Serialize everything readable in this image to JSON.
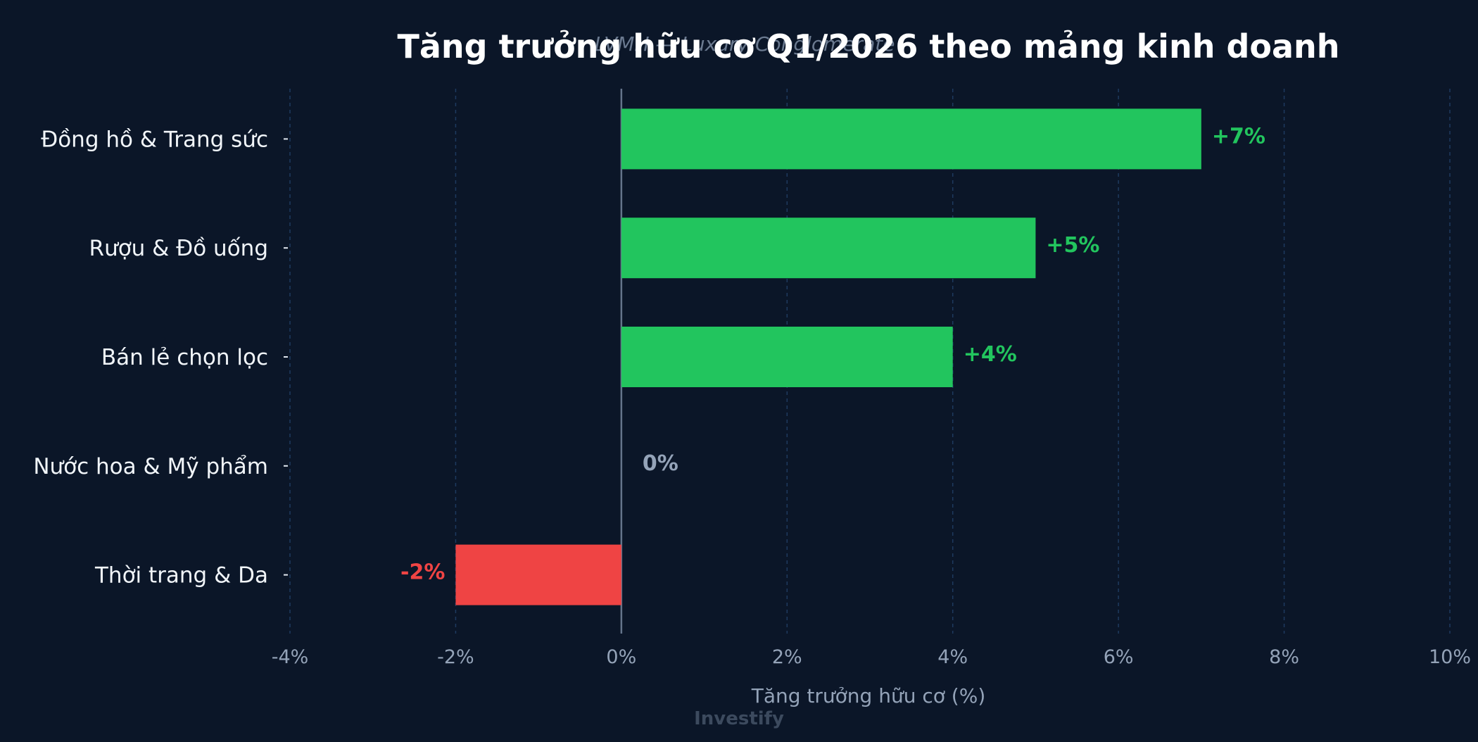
{
  "chart_data": {
    "type": "bar",
    "orientation": "horizontal",
    "title": "Tăng trưởng hữu cơ Q1/2026 theo mảng kinh doanh",
    "subtitle": "LVMH — Luxury Conglomerate",
    "xlabel": "Tăng trưởng hữu cơ (%)",
    "ylabel": "",
    "categories": [
      "Đồng hồ & Trang sức",
      "Rượu & Đồ uống",
      "Bán lẻ chọn lọc",
      "Nước hoa & Mỹ phẩm",
      "Thời trang & Da"
    ],
    "values": [
      7,
      5,
      4,
      0,
      -2
    ],
    "value_labels": [
      "+7%",
      "+5%",
      "+4%",
      "0%",
      "-2%"
    ],
    "xlim": [
      -4,
      10
    ],
    "xticks": [
      -4,
      -2,
      0,
      2,
      4,
      6,
      8,
      10
    ],
    "xtick_labels": [
      "-4%",
      "-2%",
      "0%",
      "2%",
      "4%",
      "6%",
      "8%",
      "10%"
    ],
    "grid": "vertical dashed",
    "legend": "none",
    "watermark": "Investify",
    "colors": {
      "background": "#0b1628",
      "positive": "#22c55e",
      "negative": "#ef4444",
      "neutral": "#94a3b8",
      "grid": "#1e3a5f",
      "zero_line": "#64748b"
    }
  }
}
